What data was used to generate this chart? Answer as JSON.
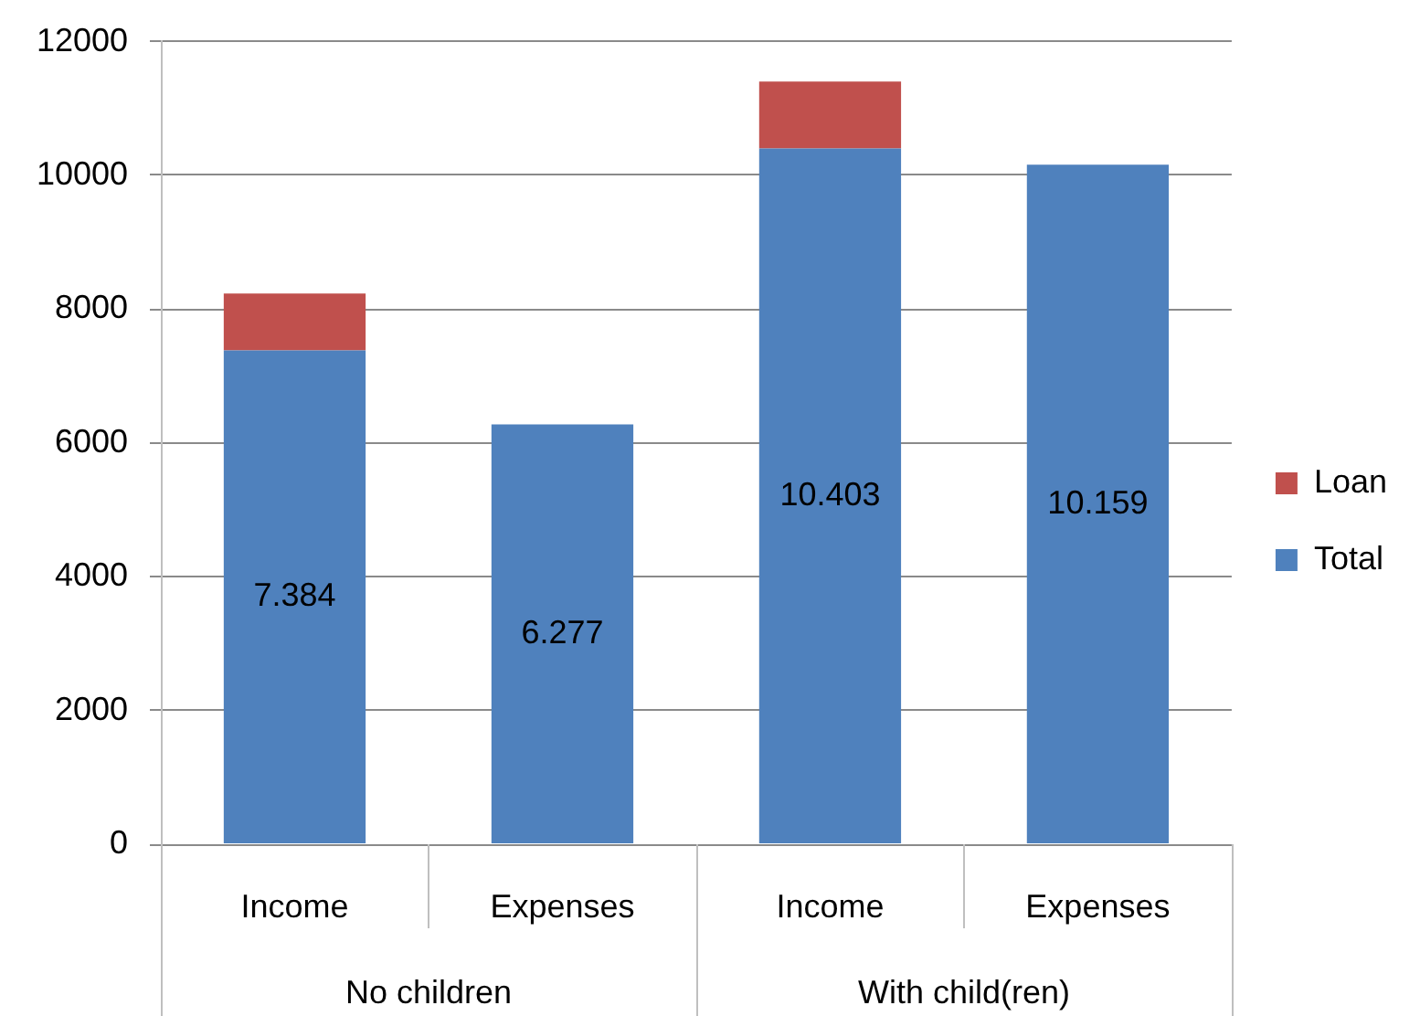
{
  "chart_data": {
    "type": "bar",
    "stacked": true,
    "categories": [
      "Income",
      "Expenses",
      "Income",
      "Expenses"
    ],
    "series": [
      {
        "name": "Total",
        "color": "#4f81bd",
        "values": [
          7384,
          6277,
          10403,
          10159
        ],
        "value_labels": [
          "7.384",
          "6.277",
          "10.403",
          "10.159"
        ]
      },
      {
        "name": "Loan",
        "color": "#c0504d",
        "values": [
          850,
          null,
          1000,
          null
        ]
      }
    ],
    "ylim": [
      0,
      12000
    ],
    "yticks": [
      0,
      2000,
      4000,
      6000,
      8000,
      10000,
      12000
    ],
    "grid": "y",
    "legend": "right",
    "annotations": [
      "No children",
      "With child(ren)"
    ]
  }
}
